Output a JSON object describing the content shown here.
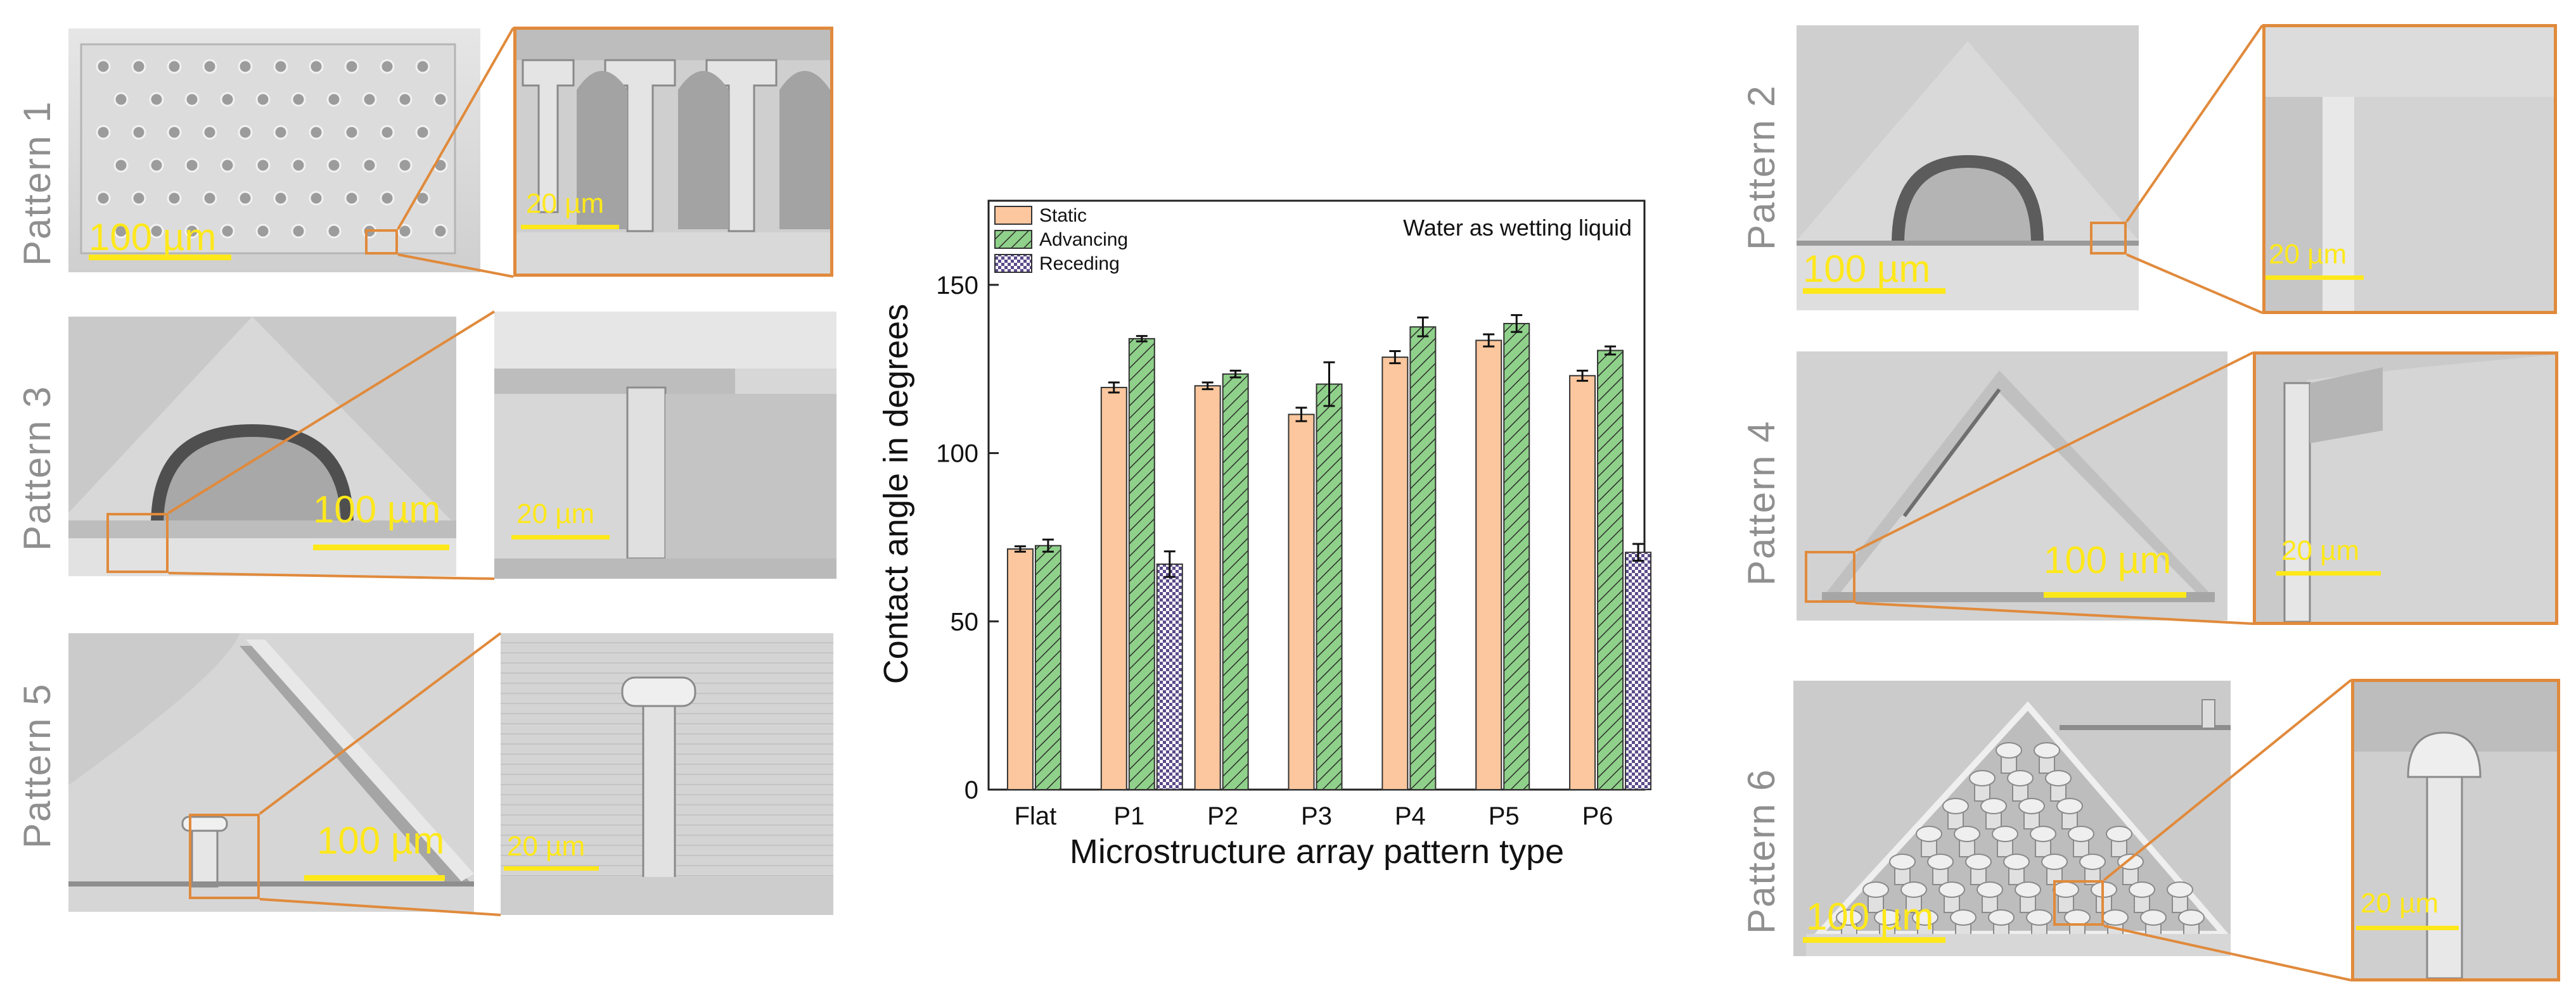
{
  "figure": {
    "panels": [
      {
        "id": "p1",
        "label": "Pattern 1",
        "scale_main": "100 µm",
        "scale_zoom": "20 µm"
      },
      {
        "id": "p2",
        "label": "Pattern 2",
        "scale_main": "100 µm",
        "scale_zoom": "20 µm"
      },
      {
        "id": "p3",
        "label": "Pattern 3",
        "scale_main": "100 µm",
        "scale_zoom": "20 µm"
      },
      {
        "id": "p4",
        "label": "Pattern 4",
        "scale_main": "100 µm",
        "scale_zoom": "20 µm"
      },
      {
        "id": "p5",
        "label": "Pattern 5",
        "scale_main": "100 µm",
        "scale_zoom": "20 µm"
      },
      {
        "id": "p6",
        "label": "Pattern 6",
        "scale_main": "100 µm",
        "scale_zoom": "20 µm"
      }
    ]
  },
  "chart_data": {
    "type": "bar",
    "title": "",
    "annotation": "Water as wetting liquid",
    "xlabel": "Microstructure array pattern type",
    "ylabel": "Contact angle in degrees",
    "ylim": [
      0,
      175
    ],
    "yticks": [
      0,
      50,
      100,
      150
    ],
    "categories": [
      "Flat",
      "P1",
      "P2",
      "P3",
      "P4",
      "P5",
      "P6"
    ],
    "series": [
      {
        "name": "Static",
        "color": "#fcc79e",
        "hatch": "none",
        "values": [
          71.5,
          119.5,
          120,
          111.5,
          128.5,
          133.5,
          123
        ],
        "errors": [
          0.8,
          1.5,
          1.0,
          2.0,
          1.8,
          1.8,
          1.5
        ]
      },
      {
        "name": "Advancing",
        "color": "#8fd18a",
        "hatch": "diagonal",
        "values": [
          72.5,
          134,
          123.5,
          120.5,
          137.5,
          138.5,
          130.5
        ],
        "errors": [
          1.8,
          0.8,
          1.0,
          6.5,
          2.8,
          2.5,
          1.2
        ]
      },
      {
        "name": "Receding",
        "color": "#5b4b8a",
        "hatch": "checker",
        "values": [
          null,
          67,
          null,
          null,
          null,
          null,
          70.5
        ],
        "errors": [
          null,
          3.8,
          null,
          null,
          null,
          null,
          2.5
        ]
      }
    ],
    "legend_position": "top-left"
  }
}
